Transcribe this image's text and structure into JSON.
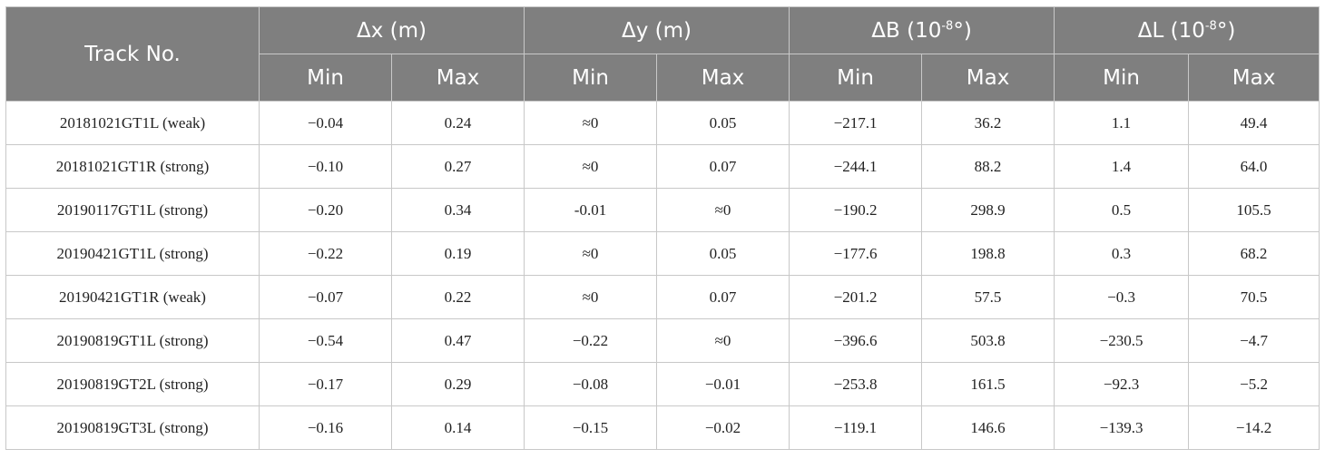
{
  "header": {
    "track_label": "Track No.",
    "groups": [
      {
        "label": "Δx (m)",
        "base": "Δx (m)",
        "sup": ""
      },
      {
        "label": "Δy (m)",
        "base": "Δy (m)",
        "sup": ""
      },
      {
        "label": "ΔB (10-8°)",
        "base": "ΔB (10",
        "sup": "-8",
        "tail": "°)"
      },
      {
        "label": "ΔL (10-8°)",
        "base": "ΔL (10",
        "sup": "-8",
        "tail": "°)"
      }
    ],
    "min_label": "Min",
    "max_label": "Max"
  },
  "rows": [
    {
      "track": "20181021GT1L (weak)",
      "cells": [
        "−0.04",
        "0.24",
        "≈0",
        "0.05",
        "−217.1",
        "36.2",
        "1.1",
        "49.4"
      ]
    },
    {
      "track": "20181021GT1R (strong)",
      "cells": [
        "−0.10",
        "0.27",
        "≈0",
        "0.07",
        "−244.1",
        "88.2",
        "1.4",
        "64.0"
      ]
    },
    {
      "track": "20190117GT1L (strong)",
      "cells": [
        "−0.20",
        "0.34",
        "-0.01",
        "≈0",
        "−190.2",
        "298.9",
        "0.5",
        "105.5"
      ]
    },
    {
      "track": "20190421GT1L (strong)",
      "cells": [
        "−0.22",
        "0.19",
        "≈0",
        "0.05",
        "−177.6",
        "198.8",
        "0.3",
        "68.2"
      ]
    },
    {
      "track": "20190421GT1R (weak)",
      "cells": [
        "−0.07",
        "0.22",
        "≈0",
        "0.07",
        "−201.2",
        "57.5",
        "−0.3",
        "70.5"
      ]
    },
    {
      "track": "20190819GT1L (strong)",
      "cells": [
        "−0.54",
        "0.47",
        "−0.22",
        "≈0",
        "−396.6",
        "503.8",
        "−230.5",
        "−4.7"
      ]
    },
    {
      "track": "20190819GT2L (strong)",
      "cells": [
        "−0.17",
        "0.29",
        "−0.08",
        "−0.01",
        "−253.8",
        "161.5",
        "−92.3",
        "−5.2"
      ]
    },
    {
      "track": "20190819GT3L (strong)",
      "cells": [
        "−0.16",
        "0.14",
        "−0.15",
        "−0.02",
        "−119.1",
        "146.6",
        "−139.3",
        "−14.2"
      ]
    }
  ]
}
